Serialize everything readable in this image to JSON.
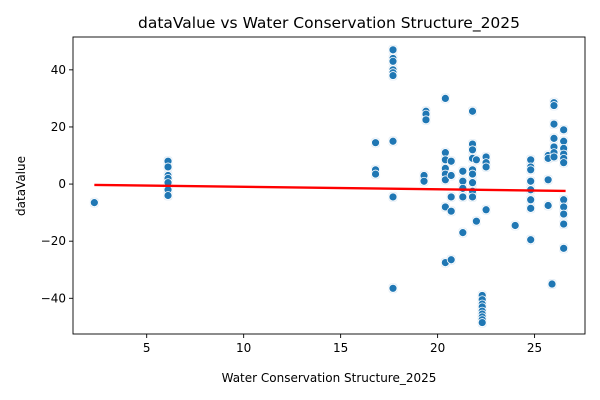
{
  "chart_data": {
    "type": "scatter",
    "title": "dataValue vs Water Conservation Structure_2025",
    "xlabel": "Water Conservation Structure_2025",
    "ylabel": "dataValue",
    "xlim": [
      1.2,
      27.6
    ],
    "ylim": [
      -52.5,
      51.5
    ],
    "xticks": [
      5,
      10,
      15,
      20,
      25
    ],
    "yticks": [
      -40,
      -20,
      0,
      20,
      40
    ],
    "grid": false,
    "legend": "none",
    "colors": {
      "points": "#1f77b4",
      "point_edge": "#ffffff",
      "halo": "#cfe0ee",
      "regression": "#ff0000",
      "axis": "#000000"
    },
    "regression": {
      "x": [
        2.3,
        26.6
      ],
      "y": [
        -0.3,
        -2.4
      ]
    },
    "points": [
      {
        "x": 2.3,
        "y": -6.5
      },
      {
        "x": 6.1,
        "y": 8.0
      },
      {
        "x": 6.1,
        "y": 6.0
      },
      {
        "x": 6.1,
        "y": 3.0
      },
      {
        "x": 6.1,
        "y": 2.0
      },
      {
        "x": 6.1,
        "y": 0.5
      },
      {
        "x": 6.1,
        "y": -2.0
      },
      {
        "x": 6.1,
        "y": -4.0
      },
      {
        "x": 16.8,
        "y": 14.5
      },
      {
        "x": 16.8,
        "y": 5.0
      },
      {
        "x": 16.8,
        "y": 3.5
      },
      {
        "x": 17.7,
        "y": 47.0
      },
      {
        "x": 17.7,
        "y": 44.0
      },
      {
        "x": 17.7,
        "y": 43.0
      },
      {
        "x": 17.7,
        "y": 40.0
      },
      {
        "x": 17.7,
        "y": 39.0
      },
      {
        "x": 17.7,
        "y": 38.0
      },
      {
        "x": 17.7,
        "y": 15.0
      },
      {
        "x": 17.7,
        "y": -4.5
      },
      {
        "x": 17.7,
        "y": -36.5
      },
      {
        "x": 19.3,
        "y": 3.0
      },
      {
        "x": 19.3,
        "y": 1.0
      },
      {
        "x": 19.4,
        "y": 25.5
      },
      {
        "x": 19.4,
        "y": 24.5
      },
      {
        "x": 19.4,
        "y": 22.5
      },
      {
        "x": 20.4,
        "y": 30.0
      },
      {
        "x": 20.4,
        "y": 11.0
      },
      {
        "x": 20.4,
        "y": 8.5
      },
      {
        "x": 20.4,
        "y": 5.5
      },
      {
        "x": 20.4,
        "y": 3.5
      },
      {
        "x": 20.4,
        "y": 1.5
      },
      {
        "x": 20.4,
        "y": -8.0
      },
      {
        "x": 20.4,
        "y": -27.5
      },
      {
        "x": 20.7,
        "y": 8.0
      },
      {
        "x": 20.7,
        "y": 3.0
      },
      {
        "x": 20.7,
        "y": -4.5
      },
      {
        "x": 20.7,
        "y": -9.5
      },
      {
        "x": 20.7,
        "y": -26.5
      },
      {
        "x": 21.3,
        "y": 4.5
      },
      {
        "x": 21.3,
        "y": 1.0
      },
      {
        "x": 21.3,
        "y": -1.5
      },
      {
        "x": 21.3,
        "y": -4.5
      },
      {
        "x": 21.3,
        "y": -17.0
      },
      {
        "x": 21.8,
        "y": 25.5
      },
      {
        "x": 21.8,
        "y": 14.0
      },
      {
        "x": 21.8,
        "y": 12.0
      },
      {
        "x": 21.8,
        "y": 9.0
      },
      {
        "x": 21.8,
        "y": 5.0
      },
      {
        "x": 21.8,
        "y": 3.5
      },
      {
        "x": 21.8,
        "y": 0.5
      },
      {
        "x": 21.8,
        "y": -2.5
      },
      {
        "x": 21.8,
        "y": -4.5
      },
      {
        "x": 22.0,
        "y": 8.5
      },
      {
        "x": 22.0,
        "y": -13.0
      },
      {
        "x": 22.3,
        "y": -39.0
      },
      {
        "x": 22.3,
        "y": -40.5
      },
      {
        "x": 22.3,
        "y": -42.0
      },
      {
        "x": 22.3,
        "y": -43.0
      },
      {
        "x": 22.3,
        "y": -44.5
      },
      {
        "x": 22.3,
        "y": -45.5
      },
      {
        "x": 22.3,
        "y": -46.5
      },
      {
        "x": 22.3,
        "y": -47.5
      },
      {
        "x": 22.3,
        "y": -48.5
      },
      {
        "x": 22.5,
        "y": 9.5
      },
      {
        "x": 22.5,
        "y": 7.5
      },
      {
        "x": 22.5,
        "y": 6.0
      },
      {
        "x": 22.5,
        "y": -9.0
      },
      {
        "x": 24.0,
        "y": -14.5
      },
      {
        "x": 24.8,
        "y": 8.5
      },
      {
        "x": 24.8,
        "y": 6.0
      },
      {
        "x": 24.8,
        "y": 5.0
      },
      {
        "x": 24.8,
        "y": 1.0
      },
      {
        "x": 24.8,
        "y": -2.0
      },
      {
        "x": 24.8,
        "y": -5.5
      },
      {
        "x": 24.8,
        "y": -8.5
      },
      {
        "x": 24.8,
        "y": -19.5
      },
      {
        "x": 25.7,
        "y": 10.0
      },
      {
        "x": 25.7,
        "y": 9.0
      },
      {
        "x": 25.7,
        "y": 1.5
      },
      {
        "x": 25.7,
        "y": -7.5
      },
      {
        "x": 25.9,
        "y": -35.0
      },
      {
        "x": 26.0,
        "y": 28.5
      },
      {
        "x": 26.0,
        "y": 27.5
      },
      {
        "x": 26.0,
        "y": 21.0
      },
      {
        "x": 26.0,
        "y": 16.0
      },
      {
        "x": 26.0,
        "y": 13.0
      },
      {
        "x": 26.0,
        "y": 11.0
      },
      {
        "x": 26.0,
        "y": 9.5
      },
      {
        "x": 26.5,
        "y": 19.0
      },
      {
        "x": 26.5,
        "y": 15.0
      },
      {
        "x": 26.5,
        "y": 12.5
      },
      {
        "x": 26.5,
        "y": 10.5
      },
      {
        "x": 26.5,
        "y": 9.0
      },
      {
        "x": 26.5,
        "y": 7.5
      },
      {
        "x": 26.5,
        "y": -5.5
      },
      {
        "x": 26.5,
        "y": -8.0
      },
      {
        "x": 26.5,
        "y": -10.5
      },
      {
        "x": 26.5,
        "y": -14.0
      },
      {
        "x": 26.5,
        "y": -22.5
      }
    ]
  }
}
